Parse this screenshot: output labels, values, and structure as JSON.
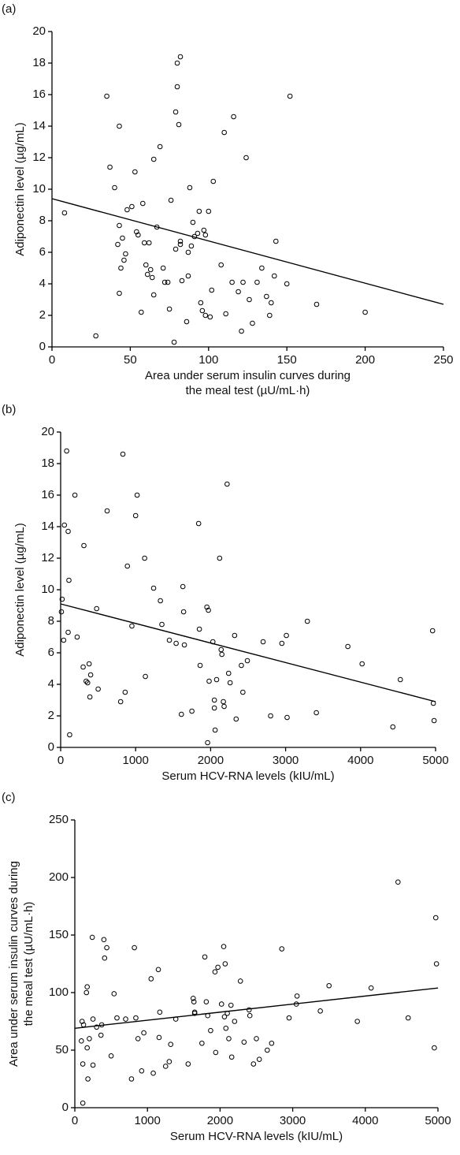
{
  "chart_data": [
    {
      "type": "scatter",
      "panel_label": "(a)",
      "x_label": [
        "Area under serum insulin curves during",
        "the meal test (µU/mL·h)"
      ],
      "y_label": "Adiponectin  level  (µg/mL)",
      "xlim": [
        0,
        250
      ],
      "ylim": [
        0,
        20
      ],
      "xticks": [
        0,
        50,
        100,
        150,
        200,
        250
      ],
      "yticks": [
        0,
        2,
        4,
        6,
        8,
        10,
        12,
        14,
        16,
        18,
        20
      ],
      "x": [
        8,
        28,
        35,
        37,
        40,
        42,
        43,
        43,
        43,
        44,
        45,
        46,
        47,
        48,
        51,
        53,
        54,
        55,
        57,
        58,
        59,
        60,
        61,
        62,
        63,
        64,
        65,
        65,
        67,
        69,
        71,
        72,
        74,
        75,
        76,
        78,
        79,
        79,
        80,
        80,
        81,
        82,
        82,
        82,
        83,
        86,
        87,
        87,
        88,
        89,
        90,
        91,
        93,
        94,
        95,
        96,
        97,
        98,
        98,
        100,
        101,
        102,
        103,
        108,
        110,
        111,
        115,
        116,
        119,
        121,
        122,
        124,
        126,
        128,
        131,
        134,
        137,
        139,
        140,
        142,
        143,
        150,
        152,
        169,
        200
      ],
      "y": [
        8.5,
        0.7,
        15.9,
        11.4,
        10.1,
        6.5,
        3.4,
        14,
        7.7,
        5,
        6.9,
        5.5,
        5.9,
        8.7,
        8.9,
        11.1,
        7.3,
        7.1,
        2.2,
        9.1,
        6.6,
        5.2,
        4.6,
        6.6,
        4.9,
        4.4,
        11.9,
        3.3,
        7.6,
        12.7,
        5,
        4.1,
        4.1,
        2.4,
        9.3,
        0.3,
        6.2,
        14.9,
        16.5,
        18,
        14.1,
        18.4,
        6.7,
        6.5,
        4.2,
        1.6,
        4.5,
        6,
        10.1,
        6.4,
        7.9,
        7,
        7.2,
        8.6,
        2.8,
        2.3,
        7.4,
        2,
        7.1,
        8.6,
        1.9,
        3.6,
        10.5,
        5.2,
        13.6,
        2.1,
        4.1,
        14.6,
        3.5,
        1,
        4.1,
        12,
        3,
        1.5,
        4.1,
        5,
        3.2,
        2,
        2.8,
        4.5,
        6.7,
        4,
        15.9,
        2.7,
        2.2
      ],
      "fit_line": {
        "x": [
          0,
          250
        ],
        "y": [
          9.4,
          2.7
        ]
      }
    },
    {
      "type": "scatter",
      "panel_label": "(b)",
      "x_label": [
        "Serum HCV-RNA levels (kIU/mL)"
      ],
      "y_label": "Adiponectin level (µg/mL)",
      "xlim": [
        0,
        5000
      ],
      "ylim": [
        0,
        20
      ],
      "xticks": [
        0,
        1000,
        2000,
        3000,
        4000,
        5000
      ],
      "yticks": [
        0,
        2,
        4,
        6,
        8,
        10,
        12,
        14,
        16,
        18,
        20
      ],
      "x": [
        10,
        20,
        40,
        50,
        80,
        100,
        100,
        110,
        120,
        190,
        220,
        300,
        310,
        340,
        360,
        380,
        390,
        400,
        480,
        500,
        620,
        800,
        830,
        860,
        890,
        950,
        1000,
        1020,
        1120,
        1130,
        1240,
        1330,
        1350,
        1450,
        1540,
        1610,
        1630,
        1640,
        1650,
        1750,
        1840,
        1850,
        1860,
        1950,
        1960,
        1970,
        1980,
        2030,
        2050,
        2050,
        2060,
        2080,
        2120,
        2140,
        2150,
        2170,
        2180,
        2220,
        2240,
        2260,
        2320,
        2340,
        2410,
        2430,
        2490,
        2700,
        2800,
        2950,
        3010,
        3020,
        3290,
        3410,
        3830,
        4020,
        4430,
        4530,
        4960,
        4970,
        4980
      ],
      "y": [
        8.6,
        9.4,
        6.8,
        14.1,
        18.8,
        13.7,
        7.3,
        10.6,
        0.8,
        16,
        7,
        5.1,
        12.8,
        4.2,
        4.1,
        5.3,
        3.2,
        4.6,
        8.8,
        3.7,
        15,
        2.9,
        18.6,
        3.5,
        11.5,
        7.7,
        14.7,
        16,
        12,
        4.5,
        10.1,
        9.3,
        7.8,
        6.8,
        6.6,
        2.1,
        10.2,
        8.6,
        6.5,
        2.3,
        14.2,
        7.5,
        5.2,
        8.9,
        0.3,
        8.7,
        4.2,
        6.7,
        2.5,
        3,
        1.1,
        4.3,
        12,
        6.2,
        5.9,
        2.9,
        2.6,
        16.7,
        4.7,
        4.1,
        7.1,
        1.8,
        5.2,
        3.5,
        5.5,
        6.7,
        2,
        6.6,
        7.1,
        1.9,
        8,
        2.2,
        6.4,
        5.3,
        1.3,
        4.3,
        7.4,
        2.8,
        1.7
      ],
      "fit_line": {
        "x": [
          0,
          5000
        ],
        "y": [
          9.1,
          2.9
        ]
      }
    },
    {
      "type": "scatter",
      "panel_label": "(c)",
      "x_label": [
        "Serum HCV-RNA levels (kIU/mL)"
      ],
      "y_label": [
        "Area under serum insulin curves during",
        "the meal test (µU/mL·h)"
      ],
      "xlim": [
        0,
        5000
      ],
      "ylim": [
        0,
        250
      ],
      "xticks": [
        0,
        1000,
        2000,
        3000,
        4000,
        5000
      ],
      "yticks": [
        0,
        50,
        100,
        150,
        200,
        250
      ],
      "x": [
        90,
        100,
        110,
        110,
        120,
        160,
        170,
        170,
        180,
        200,
        240,
        250,
        250,
        300,
        360,
        370,
        400,
        410,
        440,
        500,
        540,
        580,
        700,
        780,
        820,
        840,
        870,
        920,
        950,
        1050,
        1080,
        1150,
        1160,
        1170,
        1250,
        1300,
        1320,
        1390,
        1560,
        1630,
        1640,
        1650,
        1650,
        1750,
        1790,
        1810,
        1830,
        1870,
        1930,
        1940,
        1970,
        2020,
        2050,
        2060,
        2070,
        2080,
        2100,
        2120,
        2150,
        2160,
        2200,
        2280,
        2330,
        2400,
        2410,
        2460,
        2500,
        2540,
        2650,
        2710,
        2850,
        2950,
        3050,
        3060,
        3380,
        3500,
        3890,
        4080,
        4450,
        4590,
        4950,
        4970,
        4980
      ],
      "y": [
        58,
        75,
        4,
        38,
        72,
        100,
        105,
        52,
        25,
        60,
        148,
        77,
        37,
        70,
        63,
        72,
        146,
        130,
        139,
        45,
        99,
        78,
        77,
        25,
        139,
        78,
        60,
        32,
        65,
        112,
        30,
        120,
        61,
        83,
        36,
        40,
        55,
        77,
        38,
        95,
        92,
        83,
        82,
        56,
        131,
        92,
        80,
        67,
        118,
        48,
        122,
        90,
        140,
        79,
        125,
        69,
        82,
        60,
        89,
        44,
        75,
        110,
        57,
        85,
        80,
        38,
        60,
        42,
        50,
        56,
        138,
        78,
        90,
        97,
        84,
        106,
        75,
        104,
        196,
        78,
        52,
        165,
        125
      ],
      "fit_line": {
        "x": [
          0,
          5000
        ],
        "y": [
          69,
          104
        ]
      }
    }
  ]
}
